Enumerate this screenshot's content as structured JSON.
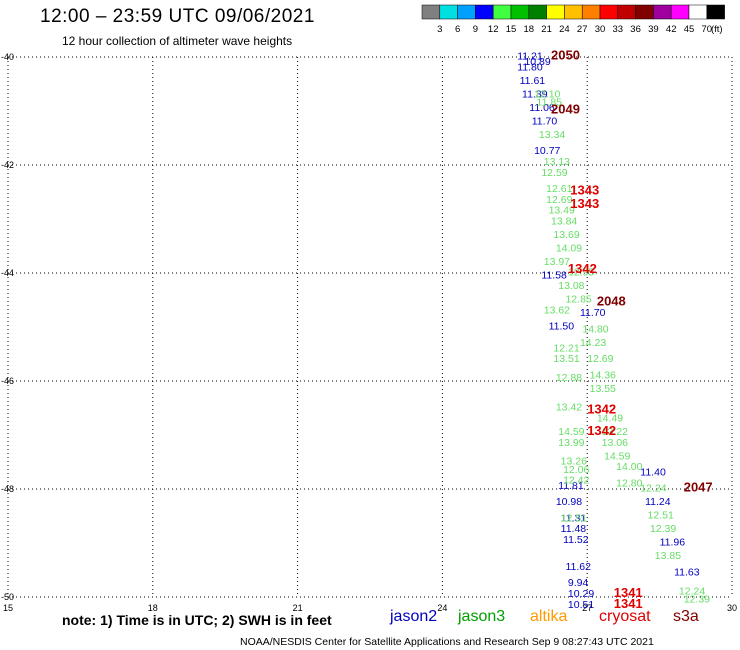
{
  "header": {
    "title": "12:00 – 23:59 UTC 09/06/2021",
    "subtitle": "12 hour collection of altimeter wave heights"
  },
  "color_scale": {
    "colors": [
      "#808080",
      "#00e0e0",
      "#00a0ff",
      "#0000ff",
      "#40ff40",
      "#00c000",
      "#008000",
      "#ffff00",
      "#ffc000",
      "#ff8000",
      "#ff0000",
      "#c00000",
      "#800000",
      "#a000a0",
      "#ff00ff",
      "#ffffff",
      "#000000"
    ],
    "labels": [
      "3",
      "6",
      "9",
      "12",
      "15",
      "18",
      "21",
      "24",
      "27",
      "30",
      "33",
      "36",
      "39",
      "42",
      "45",
      "70"
    ],
    "unit": "(ft)"
  },
  "axes": {
    "x_ticks": [
      "15",
      "18",
      "21",
      "24",
      "27",
      "30"
    ],
    "y_ticks": [
      "-40",
      "-42",
      "-44",
      "-46",
      "-48",
      "-50"
    ]
  },
  "footer": {
    "note": "note:  1) Time is in UTC;  2) SWH is in feet",
    "sat_jason2": "jason2",
    "sat_jason3": "jason3",
    "sat_altika": "altika",
    "sat_cryosat": "cryosat",
    "sat_s3a": "s3a",
    "credit": "NOAA/NESDIS Center for Satellite Applications and Research   Sep  9 08:27:43 UTC 2021"
  },
  "satellite_colors": {
    "jason2": "#0000c0",
    "jason3": "#00a000",
    "altika": "#ff9900",
    "cryosat": "#e00000",
    "s3a": "#800000",
    "light_green": "#66dd66"
  },
  "chart_data": {
    "type": "scatter",
    "xlim": [
      15,
      30
    ],
    "ylim": [
      -50,
      -40
    ],
    "grid": true,
    "points": [
      {
        "lon": 25.55,
        "lat": -40.05,
        "v": "11.21",
        "c": "jason2"
      },
      {
        "lon": 25.7,
        "lat": -40.15,
        "v": "10.89",
        "c": "jason2"
      },
      {
        "lon": 25.55,
        "lat": -40.25,
        "v": "11.80",
        "c": "jason2"
      },
      {
        "lon": 25.6,
        "lat": -40.5,
        "v": "11.61",
        "c": "jason2"
      },
      {
        "lon": 25.65,
        "lat": -40.75,
        "v": "11.39",
        "c": "jason2"
      },
      {
        "lon": 25.8,
        "lat": -41.0,
        "v": "11.06",
        "c": "jason2"
      },
      {
        "lon": 25.85,
        "lat": -41.25,
        "v": "11.70",
        "c": "jason2"
      },
      {
        "lon": 25.9,
        "lat": -41.8,
        "v": "10.77",
        "c": "jason2"
      },
      {
        "lon": 26.05,
        "lat": -44.1,
        "v": "11.58",
        "c": "jason2"
      },
      {
        "lon": 26.85,
        "lat": -44.8,
        "v": "11.70",
        "c": "jason2"
      },
      {
        "lon": 26.2,
        "lat": -45.05,
        "v": "11.50",
        "c": "jason2"
      },
      {
        "lon": 26.4,
        "lat": -48.0,
        "v": "11.81",
        "c": "jason2"
      },
      {
        "lon": 26.35,
        "lat": -48.3,
        "v": "10.98",
        "c": "jason2"
      },
      {
        "lon": 26.45,
        "lat": -48.6,
        "v": "11.31",
        "c": "jason2"
      },
      {
        "lon": 26.45,
        "lat": -48.8,
        "v": "11.48",
        "c": "jason2"
      },
      {
        "lon": 26.5,
        "lat": -49.0,
        "v": "11.52",
        "c": "jason2"
      },
      {
        "lon": 26.55,
        "lat": -49.5,
        "v": "11.62",
        "c": "jason2"
      },
      {
        "lon": 26.6,
        "lat": -49.8,
        "v": "9.94",
        "c": "jason2"
      },
      {
        "lon": 26.6,
        "lat": -50.0,
        "v": "10.29",
        "c": "jason2"
      },
      {
        "lon": 26.6,
        "lat": -50.2,
        "v": "10.51",
        "c": "jason2"
      },
      {
        "lon": 28.1,
        "lat": -47.75,
        "v": "11.40",
        "c": "jason2"
      },
      {
        "lon": 28.2,
        "lat": -48.3,
        "v": "11.24",
        "c": "jason2"
      },
      {
        "lon": 28.5,
        "lat": -49.05,
        "v": "11.96",
        "c": "jason2"
      },
      {
        "lon": 28.8,
        "lat": -49.6,
        "v": "11.63",
        "c": "jason2"
      },
      {
        "lon": 25.9,
        "lat": -40.75,
        "v": "12.10",
        "c": "light_green"
      },
      {
        "lon": 25.95,
        "lat": -40.9,
        "v": "11.85",
        "c": "light_green"
      },
      {
        "lon": 26.0,
        "lat": -41.5,
        "v": "13.34",
        "c": "light_green"
      },
      {
        "lon": 26.1,
        "lat": -42.0,
        "v": "13.13",
        "c": "light_green"
      },
      {
        "lon": 26.05,
        "lat": -42.2,
        "v": "12.59",
        "c": "light_green"
      },
      {
        "lon": 26.15,
        "lat": -42.5,
        "v": "12.61",
        "c": "light_green"
      },
      {
        "lon": 26.15,
        "lat": -42.7,
        "v": "12.69",
        "c": "light_green"
      },
      {
        "lon": 26.2,
        "lat": -42.9,
        "v": "13.49",
        "c": "light_green"
      },
      {
        "lon": 26.25,
        "lat": -43.1,
        "v": "13.84",
        "c": "light_green"
      },
      {
        "lon": 26.3,
        "lat": -43.35,
        "v": "13.69",
        "c": "light_green"
      },
      {
        "lon": 26.35,
        "lat": -43.6,
        "v": "14.09",
        "c": "light_green"
      },
      {
        "lon": 26.1,
        "lat": -43.85,
        "v": "13.97",
        "c": "light_green"
      },
      {
        "lon": 26.6,
        "lat": -44.05,
        "v": "12.95",
        "c": "light_green"
      },
      {
        "lon": 26.4,
        "lat": -44.3,
        "v": "13.08",
        "c": "light_green"
      },
      {
        "lon": 26.55,
        "lat": -44.55,
        "v": "12.85",
        "c": "light_green"
      },
      {
        "lon": 26.1,
        "lat": -44.75,
        "v": "13.62",
        "c": "light_green"
      },
      {
        "lon": 26.9,
        "lat": -45.1,
        "v": "14.80",
        "c": "light_green"
      },
      {
        "lon": 26.85,
        "lat": -45.35,
        "v": "14.23",
        "c": "light_green"
      },
      {
        "lon": 26.3,
        "lat": -45.45,
        "v": "12.21",
        "c": "light_green"
      },
      {
        "lon": 26.3,
        "lat": -45.65,
        "v": "13.51",
        "c": "light_green"
      },
      {
        "lon": 27.0,
        "lat": -45.65,
        "v": "12.69",
        "c": "light_green"
      },
      {
        "lon": 27.05,
        "lat": -45.95,
        "v": "14.36",
        "c": "light_green"
      },
      {
        "lon": 26.35,
        "lat": -46.0,
        "v": "12.88",
        "c": "light_green"
      },
      {
        "lon": 27.05,
        "lat": -46.2,
        "v": "13.55",
        "c": "light_green"
      },
      {
        "lon": 26.35,
        "lat": -46.55,
        "v": "13.42",
        "c": "light_green"
      },
      {
        "lon": 27.2,
        "lat": -46.75,
        "v": "14.49",
        "c": "light_green"
      },
      {
        "lon": 26.4,
        "lat": -47.0,
        "v": "14.59",
        "c": "light_green"
      },
      {
        "lon": 27.3,
        "lat": -47.0,
        "v": "13.22",
        "c": "light_green"
      },
      {
        "lon": 26.4,
        "lat": -47.2,
        "v": "13.99",
        "c": "light_green"
      },
      {
        "lon": 27.3,
        "lat": -47.2,
        "v": "13.06",
        "c": "light_green"
      },
      {
        "lon": 27.35,
        "lat": -47.45,
        "v": "14.59",
        "c": "light_green"
      },
      {
        "lon": 26.45,
        "lat": -47.55,
        "v": "13.26",
        "c": "light_green"
      },
      {
        "lon": 26.5,
        "lat": -47.7,
        "v": "12.06",
        "c": "light_green"
      },
      {
        "lon": 27.6,
        "lat": -47.65,
        "v": "14.00",
        "c": "light_green"
      },
      {
        "lon": 26.5,
        "lat": -47.9,
        "v": "12.42",
        "c": "light_green"
      },
      {
        "lon": 27.6,
        "lat": -47.95,
        "v": "12.80",
        "c": "light_green"
      },
      {
        "lon": 28.1,
        "lat": -48.05,
        "v": "12.24",
        "c": "light_green"
      },
      {
        "lon": 28.25,
        "lat": -48.55,
        "v": "12.51",
        "c": "light_green"
      },
      {
        "lon": 28.3,
        "lat": -48.8,
        "v": "12.39",
        "c": "light_green"
      },
      {
        "lon": 28.4,
        "lat": -49.3,
        "v": "13.85",
        "c": "light_green"
      },
      {
        "lon": 28.9,
        "lat": -49.95,
        "v": "12.24",
        "c": "light_green"
      },
      {
        "lon": 29.0,
        "lat": -50.1,
        "v": "12.39",
        "c": "light_green"
      },
      {
        "lon": 26.45,
        "lat": -48.6,
        "v": "12.51",
        "c": "light_green"
      },
      {
        "lon": 26.25,
        "lat": -40.05,
        "v": "2050",
        "c": "s3a",
        "big": true
      },
      {
        "lon": 26.25,
        "lat": -41.05,
        "v": "2049",
        "c": "s3a",
        "big": true
      },
      {
        "lon": 26.65,
        "lat": -42.55,
        "v": "1343",
        "c": "cryosat",
        "big": true
      },
      {
        "lon": 26.65,
        "lat": -42.8,
        "v": "1343",
        "c": "cryosat",
        "big": true
      },
      {
        "lon": 26.6,
        "lat": -44.0,
        "v": "1342",
        "c": "cryosat",
        "big": true
      },
      {
        "lon": 27.2,
        "lat": -44.6,
        "v": "2048",
        "c": "s3a",
        "big": true
      },
      {
        "lon": 27.0,
        "lat": -46.6,
        "v": "1342",
        "c": "cryosat",
        "big": true
      },
      {
        "lon": 27.0,
        "lat": -47.0,
        "v": "1342",
        "c": "cryosat",
        "big": true
      },
      {
        "lon": 29.0,
        "lat": -48.05,
        "v": "2047",
        "c": "s3a",
        "big": true
      },
      {
        "lon": 27.55,
        "lat": -50.0,
        "v": "1341",
        "c": "cryosat",
        "big": true
      },
      {
        "lon": 27.55,
        "lat": -50.2,
        "v": "1341",
        "c": "cryosat",
        "big": true
      }
    ]
  }
}
